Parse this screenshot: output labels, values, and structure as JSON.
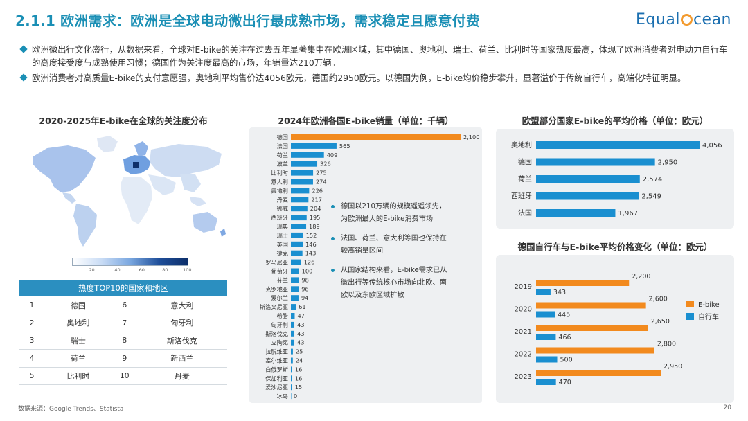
{
  "header": {
    "title": "2.1.1 欧洲需求：欧洲是全球电动微出行最成熟市场，需求稳定且愿意付费",
    "logo_pre": "Equal",
    "logo_post": "cean"
  },
  "bullets": [
    "欧洲微出行文化盛行，从数据来看，全球对E-bike的关注在过去五年显著集中在欧洲区域，其中德国、奥地利、瑞士、荷兰、比利时等国家热度最高，体现了欧洲消费者对电助力自行车的高度接受度与成熟使用习惯；德国作为关注度最高的市场，年销量达210万辆。",
    "欧洲消费者对高质量E-bike的支付意愿强，奥地利平均售价达4056欧元，德国约2950欧元。以德国为例，E-bike均价稳步攀升，显著溢价于传统自行车，高端化特征明显。"
  ],
  "map_panel": {
    "title": "2020-2025年E-bike在全球的关注度分布",
    "legend_ticks": [
      "20",
      "40",
      "60",
      "80",
      "100"
    ]
  },
  "top10_table": {
    "header": "热度TOP10的国家和地区",
    "rows": [
      {
        "r1": "1",
        "c1": "德国",
        "r2": "6",
        "c2": "意大利"
      },
      {
        "r1": "2",
        "c1": "奥地利",
        "r2": "7",
        "c2": "匈牙利"
      },
      {
        "r1": "3",
        "c1": "瑞士",
        "r2": "8",
        "c2": "斯洛伐克"
      },
      {
        "r1": "4",
        "c1": "荷兰",
        "r2": "9",
        "c2": "新西兰"
      },
      {
        "r1": "5",
        "c1": "比利时",
        "r2": "10",
        "c2": "丹麦"
      }
    ]
  },
  "notes": [
    "德国以210万辆的规模遥遥领先，为欧洲最大的E-bike消费市场",
    "法国、荷兰、意大利等国也保持在较高销量区间",
    "从国家结构来看，E-bike需求已从微出行等传统核心市场向北欧、南欧以及东欧区域扩散"
  ],
  "chart_data": [
    {
      "type": "bar",
      "orientation": "horizontal",
      "title": "2024年欧洲各国E-bike销量（单位：千辆）",
      "categories": [
        "德国",
        "法国",
        "荷兰",
        "波兰",
        "比利时",
        "意大利",
        "奥地利",
        "丹麦",
        "挪威",
        "西班牙",
        "瑞典",
        "瑞士",
        "英国",
        "捷克",
        "罗马尼亚",
        "葡萄牙",
        "芬兰",
        "克罗地亚",
        "爱尔兰",
        "斯洛文尼亚",
        "希腊",
        "匈牙利",
        "斯洛伐克",
        "立陶宛",
        "拉脱维亚",
        "塞尔维亚",
        "白俄罗斯",
        "保加利亚",
        "爱沙尼亚",
        "冰岛"
      ],
      "values": [
        2100,
        565,
        409,
        326,
        275,
        274,
        226,
        217,
        204,
        195,
        189,
        152,
        146,
        143,
        126,
        100,
        98,
        96,
        94,
        61,
        47,
        43,
        43,
        43,
        25,
        24,
        16,
        16,
        15,
        0
      ],
      "value_labels": [
        "2,100",
        "565",
        "409",
        "326",
        "275",
        "274",
        "226",
        "217",
        "204",
        "195",
        "189",
        "152",
        "146",
        "143",
        "126",
        "100",
        "98",
        "96",
        "94",
        "61",
        "47",
        "43",
        "43",
        "43",
        "25",
        "24",
        "16",
        "16",
        "15",
        "0"
      ],
      "highlight_color": "#f28a1e",
      "bar_color": "#1a8fd0"
    },
    {
      "type": "bar",
      "orientation": "horizontal",
      "title": "欧盟部分国家E-bike的平均价格（单位：欧元）",
      "categories": [
        "奥地利",
        "德国",
        "荷兰",
        "西班牙",
        "法国"
      ],
      "values": [
        4056,
        2950,
        2574,
        2549,
        1967
      ],
      "value_labels": [
        "4,056",
        "2,950",
        "2,574",
        "2,549",
        "1,967"
      ],
      "bar_color": "#1a8fd0"
    },
    {
      "type": "bar",
      "orientation": "horizontal",
      "title": "德国自行车与E-bike平均价格变化（单位：欧元）",
      "categories": [
        "2019",
        "2020",
        "2021",
        "2022",
        "2023"
      ],
      "series": [
        {
          "name": "E-bike",
          "values": [
            2200,
            2600,
            2650,
            2800,
            2950
          ],
          "labels": [
            "2,200",
            "2,600",
            "2,650",
            "2,800",
            "2,950"
          ],
          "color": "#f28a1e"
        },
        {
          "name": "自行车",
          "values": [
            343,
            445,
            466,
            500,
            470
          ],
          "labels": [
            "343",
            "445",
            "466",
            "500",
            "470"
          ],
          "color": "#1a8fd0"
        }
      ],
      "legend": "right"
    }
  ],
  "footer": {
    "source": "数据来源：Google Trends、Statista",
    "page": "20"
  }
}
